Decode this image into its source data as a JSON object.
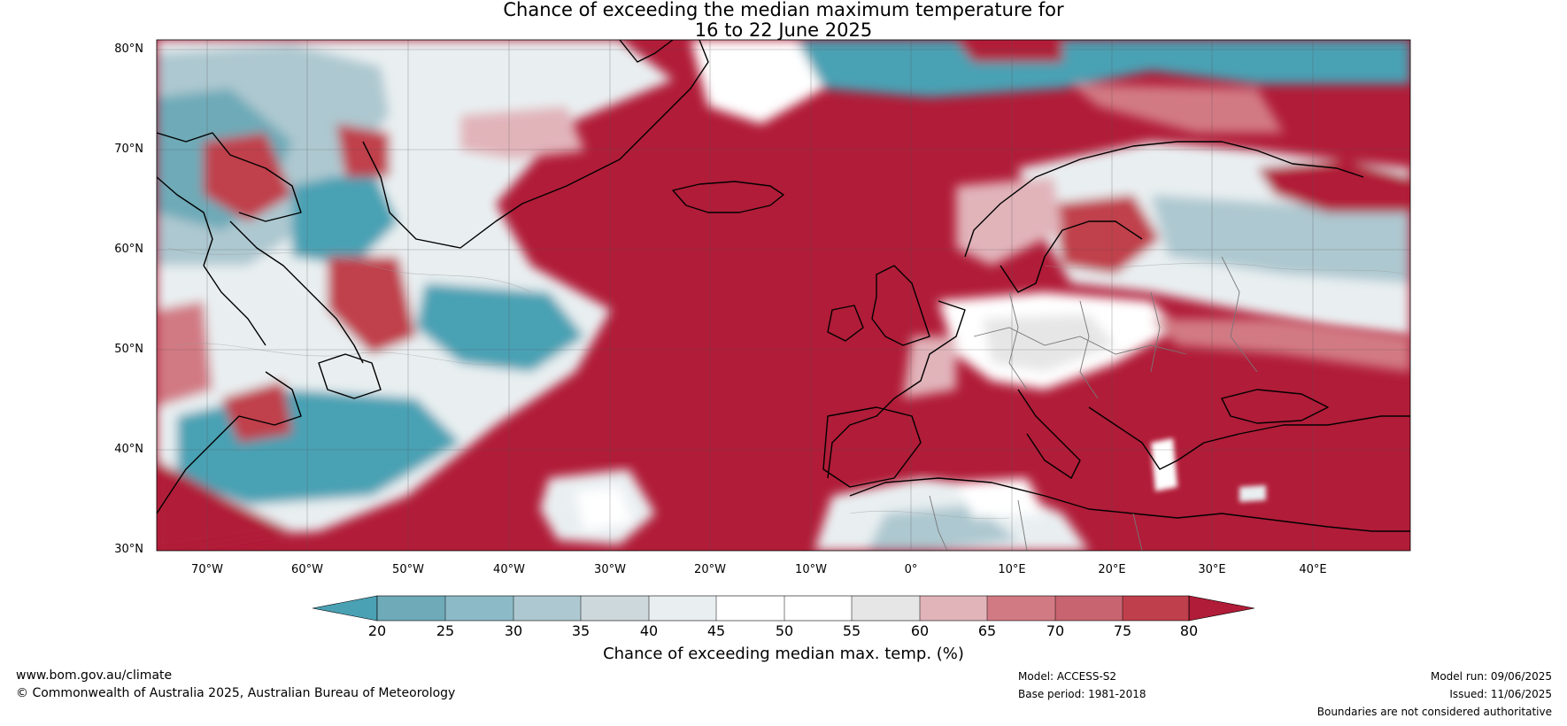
{
  "title_line1": "Chance of exceeding the median maximum temperature for",
  "title_line2": "16 to 22 June 2025",
  "lat_labels": [
    "80°N",
    "70°N",
    "60°N",
    "50°N",
    "40°N",
    "30°N"
  ],
  "lon_labels": [
    "70°W",
    "60°W",
    "50°W",
    "40°W",
    "30°W",
    "20°W",
    "10°W",
    "0°",
    "10°E",
    "20°E",
    "30°E",
    "40°E"
  ],
  "colorbar": {
    "ticks": [
      "20",
      "25",
      "30",
      "35",
      "40",
      "45",
      "50",
      "55",
      "60",
      "65",
      "70",
      "75",
      "80"
    ],
    "colors": [
      "#4aa1b4",
      "#6eaab8",
      "#8dbac7",
      "#adc8d0",
      "#cdd8dc",
      "#e9eff1",
      "#ffffff",
      "#ffffff",
      "#e6e6e6",
      "#e1b4ba",
      "#d27a84",
      "#c76470",
      "#c03f4c",
      "#b11c38"
    ],
    "label": "Chance of exceeding median max. temp. (%)"
  },
  "footer": {
    "website": "www.bom.gov.au/climate",
    "copyright": "© Commonwealth of Australia 2025, Australian Bureau of Meteorology",
    "model": "Model: ACCESS-S2",
    "base_period": "Base period: 1981-2018",
    "model_run": "Model run: 09/06/2025",
    "issued": "Issued: 11/06/2025",
    "boundaries": "Boundaries are not considered authoritative"
  },
  "colors": {
    "warm": "#b11c38",
    "cool": "#4aa1b4",
    "neutral": "#ffffff"
  }
}
